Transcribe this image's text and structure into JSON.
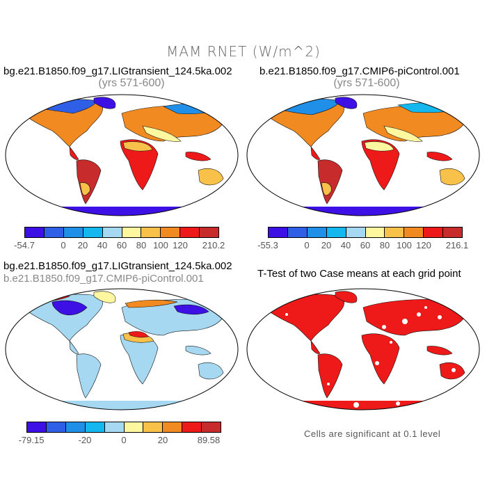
{
  "title": "MAM RNET (W/m^2)",
  "colors": [
    "#3d10e6",
    "#2f5fe6",
    "#1f8fe8",
    "#15b8ee",
    "#a6d8f2",
    "#fdf7a0",
    "#f8c24a",
    "#f28a22",
    "#ee1a1a",
    "#c72b2b"
  ],
  "panels": [
    {
      "title": "bg.e21.B1850.f09_g17.LIGtransient_124.5ka.002",
      "subtitle": "(yrs 571-600)",
      "ticks": [
        "-54.7",
        "0",
        "20",
        "40",
        "60",
        "80",
        "100",
        "120",
        "210.2"
      ]
    },
    {
      "title": "b.e21.B1850.f09_g17.CMIP6-piControl.001",
      "subtitle": "(yrs 571-600)",
      "ticks": [
        "-55.3",
        "0",
        "20",
        "40",
        "60",
        "80",
        "100",
        "120",
        "216.1"
      ]
    },
    {
      "title": "bg.e21.B1850.f09_g17.LIGtransient_124.5ka.002",
      "subtitle": "b.e21.B1850.f09_g17.CMIP6-piControl.001",
      "ticks": [
        "-79.15",
        "-20",
        "0",
        "20",
        "89.58"
      ]
    },
    {
      "title": "T-Test of two Case means at each grid point",
      "note": "Cells are significant at 0.1 level"
    }
  ]
}
